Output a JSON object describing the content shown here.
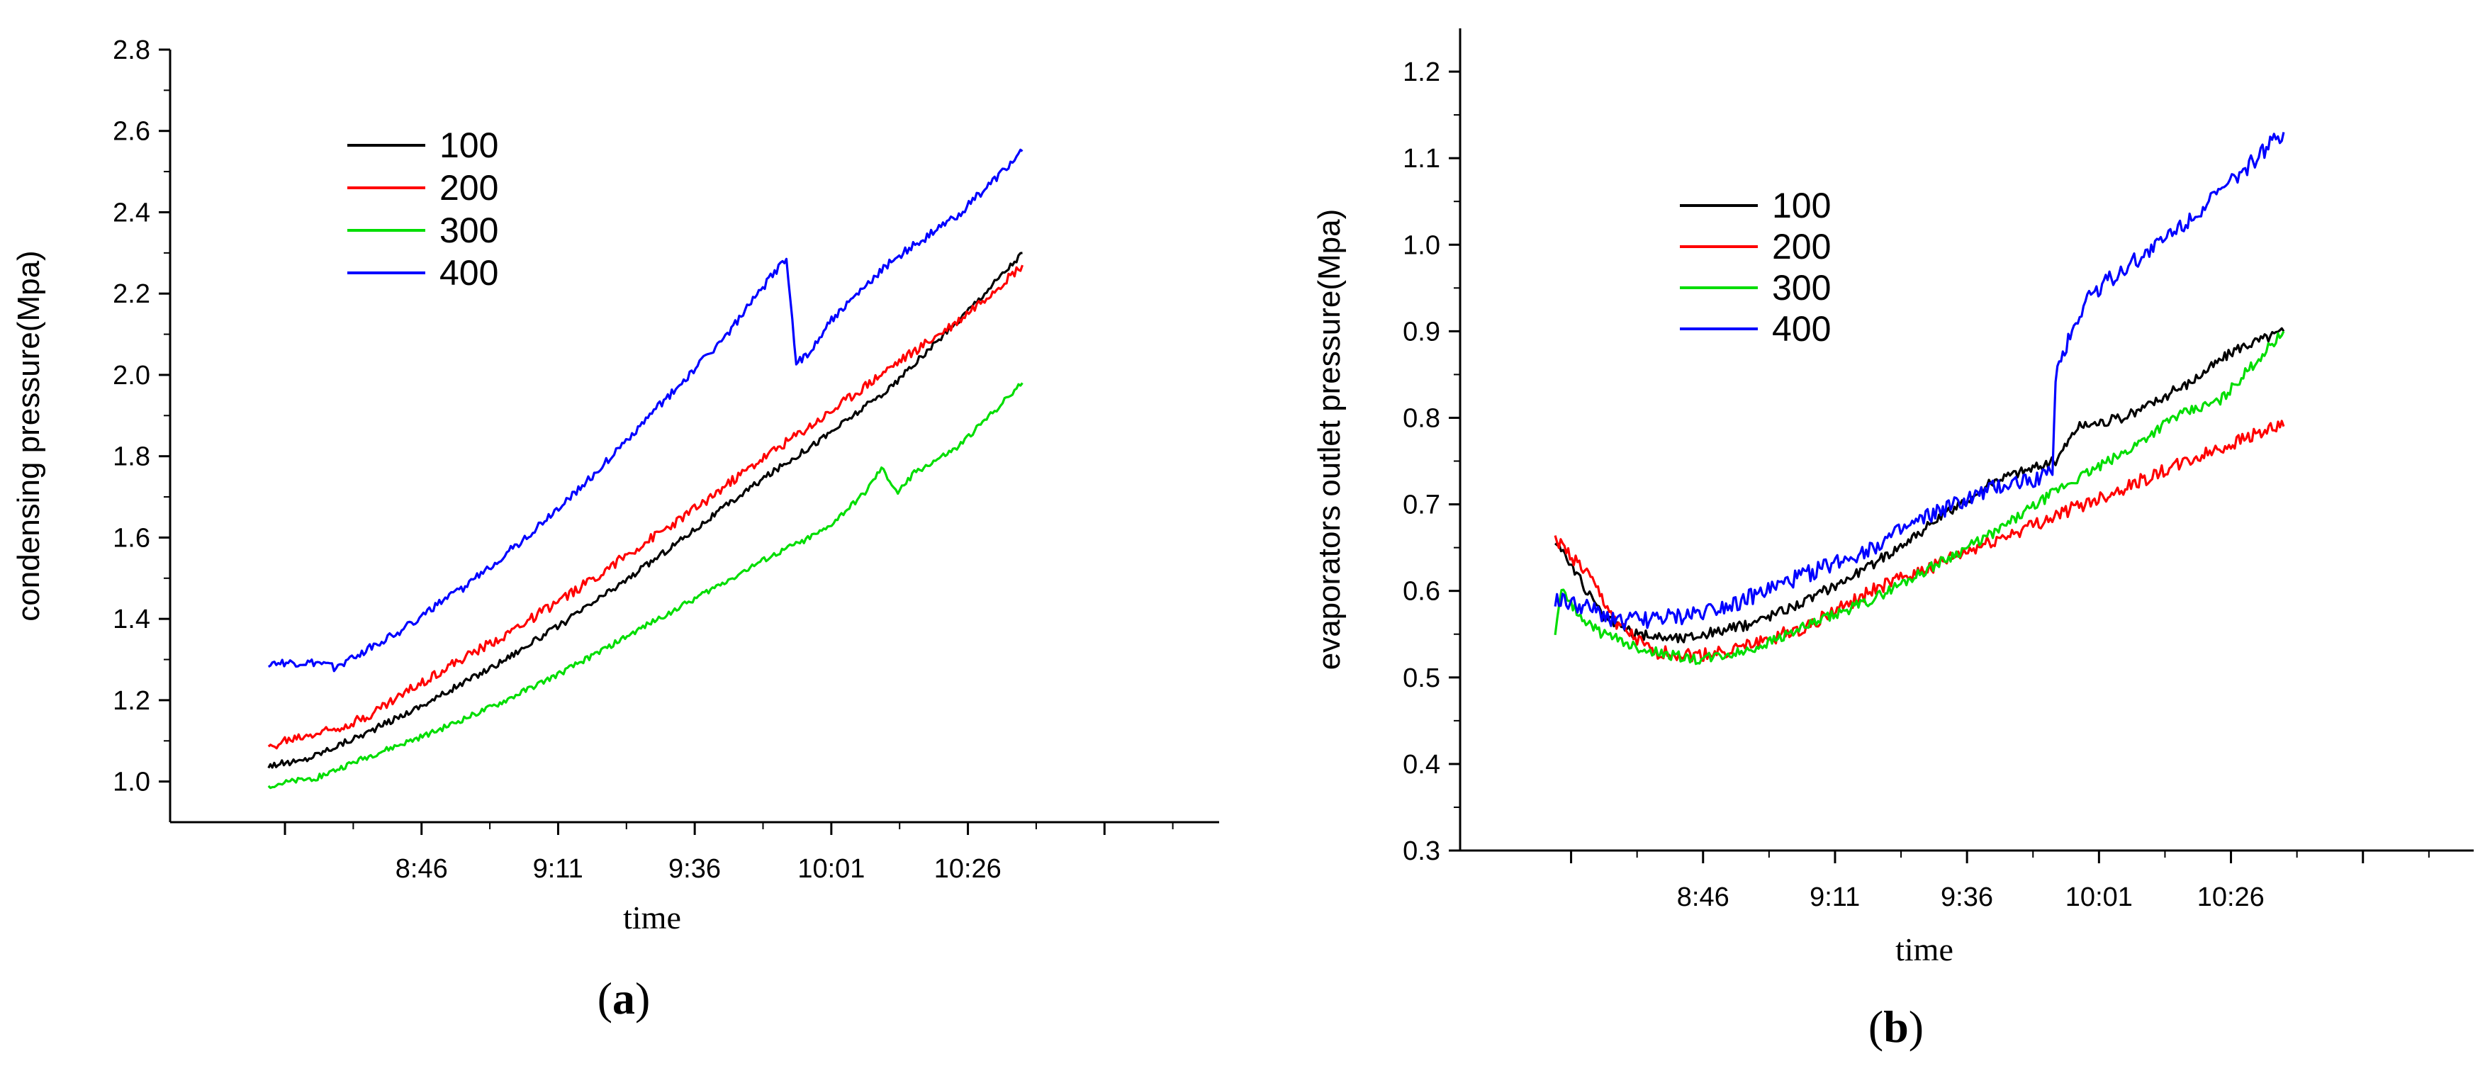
{
  "chart_data": [
    {
      "type": "line",
      "panel_label": "a",
      "xlabel": "time",
      "ylabel": "condensing pressure(Mpa)",
      "ylim": [
        0.9,
        2.8
      ],
      "yticks": [
        "1.0",
        "1.2",
        "1.4",
        "1.6",
        "1.8",
        "2.0",
        "2.2",
        "2.4",
        "2.6",
        "2.8"
      ],
      "xlim": [
        8.0,
        11.2
      ],
      "xticks": [
        {
          "t": 8.767,
          "label": "8:46"
        },
        {
          "t": 9.183,
          "label": "9:11"
        },
        {
          "t": 9.6,
          "label": "9:36"
        },
        {
          "t": 10.017,
          "label": "10:01"
        },
        {
          "t": 10.433,
          "label": "10:26"
        }
      ],
      "legend_position": "top-left",
      "series": [
        {
          "name": "100",
          "color": "#000000",
          "noise": 0.008,
          "points": [
            [
              8.3,
              1.04
            ],
            [
              8.4,
              1.05
            ],
            [
              8.6,
              1.12
            ],
            [
              8.8,
              1.2
            ],
            [
              9.0,
              1.29
            ],
            [
              9.2,
              1.39
            ],
            [
              9.4,
              1.5
            ],
            [
              9.6,
              1.62
            ],
            [
              9.8,
              1.74
            ],
            [
              10.0,
              1.85
            ],
            [
              10.2,
              1.97
            ],
            [
              10.4,
              2.13
            ],
            [
              10.6,
              2.3
            ]
          ]
        },
        {
          "name": "200",
          "color": "#ff0000",
          "noise": 0.012,
          "points": [
            [
              8.3,
              1.08
            ],
            [
              8.35,
              1.1
            ],
            [
              8.5,
              1.13
            ],
            [
              8.6,
              1.16
            ],
            [
              8.8,
              1.26
            ],
            [
              9.0,
              1.35
            ],
            [
              9.2,
              1.45
            ],
            [
              9.4,
              1.56
            ],
            [
              9.6,
              1.67
            ],
            [
              9.8,
              1.79
            ],
            [
              10.0,
              1.9
            ],
            [
              10.2,
              2.02
            ],
            [
              10.4,
              2.13
            ],
            [
              10.6,
              2.27
            ]
          ]
        },
        {
          "name": "300",
          "color": "#00dd00",
          "noise": 0.007,
          "points": [
            [
              8.3,
              0.99
            ],
            [
              8.45,
              1.01
            ],
            [
              8.6,
              1.06
            ],
            [
              8.8,
              1.12
            ],
            [
              9.0,
              1.19
            ],
            [
              9.2,
              1.27
            ],
            [
              9.4,
              1.36
            ],
            [
              9.6,
              1.45
            ],
            [
              9.8,
              1.54
            ],
            [
              10.0,
              1.62
            ],
            [
              10.12,
              1.71
            ],
            [
              10.17,
              1.77
            ],
            [
              10.22,
              1.71
            ],
            [
              10.27,
              1.76
            ],
            [
              10.4,
              1.82
            ],
            [
              10.6,
              1.98
            ]
          ]
        },
        {
          "name": "400",
          "color": "#0000ff",
          "noise": 0.01,
          "points": [
            [
              8.3,
              1.29
            ],
            [
              8.45,
              1.29
            ],
            [
              8.5,
              1.28
            ],
            [
              8.7,
              1.37
            ],
            [
              8.9,
              1.48
            ],
            [
              9.1,
              1.61
            ],
            [
              9.3,
              1.76
            ],
            [
              9.5,
              1.93
            ],
            [
              9.7,
              2.1
            ],
            [
              9.88,
              2.29
            ],
            [
              9.91,
              2.03
            ],
            [
              9.95,
              2.05
            ],
            [
              10.0,
              2.12
            ],
            [
              10.1,
              2.2
            ],
            [
              10.2,
              2.28
            ],
            [
              10.4,
              2.39
            ],
            [
              10.6,
              2.55
            ]
          ]
        }
      ]
    },
    {
      "type": "line",
      "panel_label": "b",
      "xlabel": "time",
      "ylabel": "evaporators outlet pressure(Mpa)",
      "ylim": [
        0.3,
        1.25
      ],
      "yticks": [
        "0.3",
        "0.4",
        "0.5",
        "0.6",
        "0.7",
        "0.8",
        "0.9",
        "1.0",
        "1.1",
        "1.2"
      ],
      "xlim": [
        8.0,
        11.2
      ],
      "xticks": [
        {
          "t": 8.767,
          "label": "8:46"
        },
        {
          "t": 9.183,
          "label": "9:11"
        },
        {
          "t": 9.6,
          "label": "9:36"
        },
        {
          "t": 10.017,
          "label": "10:01"
        },
        {
          "t": 10.433,
          "label": "10:26"
        }
      ],
      "legend_position": "top-left",
      "series": [
        {
          "name": "100",
          "color": "#000000",
          "noise": 0.006,
          "points": [
            [
              8.3,
              0.66
            ],
            [
              8.35,
              0.63
            ],
            [
              8.45,
              0.57
            ],
            [
              8.55,
              0.55
            ],
            [
              8.7,
              0.545
            ],
            [
              8.9,
              0.56
            ],
            [
              9.1,
              0.59
            ],
            [
              9.3,
              0.63
            ],
            [
              9.5,
              0.68
            ],
            [
              9.7,
              0.73
            ],
            [
              9.88,
              0.75
            ],
            [
              9.95,
              0.79
            ],
            [
              10.1,
              0.8
            ],
            [
              10.3,
              0.84
            ],
            [
              10.45,
              0.88
            ],
            [
              10.6,
              0.9
            ]
          ]
        },
        {
          "name": "200",
          "color": "#ff0000",
          "noise": 0.008,
          "points": [
            [
              8.3,
              0.66
            ],
            [
              8.4,
              0.62
            ],
            [
              8.5,
              0.56
            ],
            [
              8.6,
              0.53
            ],
            [
              8.75,
              0.525
            ],
            [
              8.9,
              0.535
            ],
            [
              9.1,
              0.56
            ],
            [
              9.3,
              0.6
            ],
            [
              9.5,
              0.63
            ],
            [
              9.7,
              0.66
            ],
            [
              9.9,
              0.69
            ],
            [
              10.1,
              0.72
            ],
            [
              10.3,
              0.75
            ],
            [
              10.5,
              0.78
            ],
            [
              10.6,
              0.79
            ]
          ]
        },
        {
          "name": "300",
          "color": "#00dd00",
          "noise": 0.006,
          "points": [
            [
              8.3,
              0.55
            ],
            [
              8.32,
              0.6
            ],
            [
              8.38,
              0.57
            ],
            [
              8.45,
              0.55
            ],
            [
              8.6,
              0.53
            ],
            [
              8.75,
              0.52
            ],
            [
              8.9,
              0.53
            ],
            [
              9.1,
              0.56
            ],
            [
              9.3,
              0.59
            ],
            [
              9.5,
              0.63
            ],
            [
              9.7,
              0.67
            ],
            [
              9.9,
              0.72
            ],
            [
              10.1,
              0.76
            ],
            [
              10.25,
              0.8
            ],
            [
              10.4,
              0.82
            ],
            [
              10.6,
              0.9
            ]
          ]
        },
        {
          "name": "400",
          "color": "#0000ff",
          "noise": 0.01,
          "points": [
            [
              8.3,
              0.59
            ],
            [
              8.4,
              0.58
            ],
            [
              8.5,
              0.565
            ],
            [
              8.7,
              0.57
            ],
            [
              8.9,
              0.59
            ],
            [
              9.1,
              0.62
            ],
            [
              9.3,
              0.65
            ],
            [
              9.5,
              0.69
            ],
            [
              9.7,
              0.72
            ],
            [
              9.87,
              0.735
            ],
            [
              9.88,
              0.85
            ],
            [
              9.92,
              0.89
            ],
            [
              9.98,
              0.94
            ],
            [
              10.05,
              0.96
            ],
            [
              10.2,
              1.0
            ],
            [
              10.4,
              1.06
            ],
            [
              10.6,
              1.13
            ]
          ]
        }
      ]
    }
  ]
}
